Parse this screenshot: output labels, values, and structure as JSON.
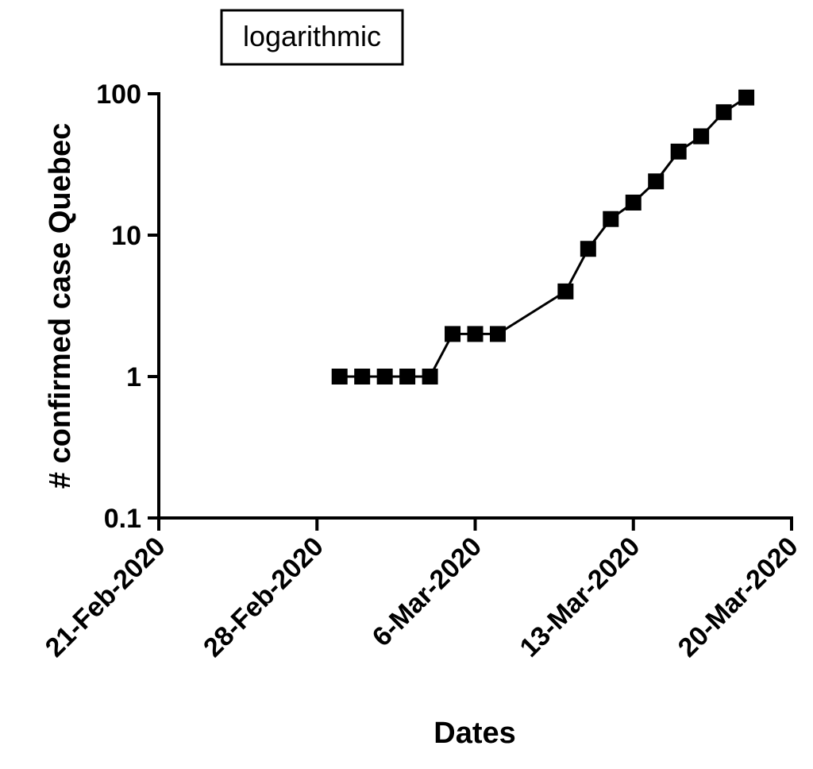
{
  "chart_data": {
    "type": "line",
    "title": "logarithmic",
    "xlabel": "Dates",
    "ylabel": "# confirmed case Quebec",
    "yscale": "log",
    "ylim": [
      0.1,
      100
    ],
    "xlim": [
      "2020-02-21",
      "2020-03-20"
    ],
    "y_ticks": [
      {
        "v": 0.1,
        "label": "0.1"
      },
      {
        "v": 1,
        "label": "1"
      },
      {
        "v": 10,
        "label": "10"
      },
      {
        "v": 100,
        "label": "100"
      }
    ],
    "x_ticks": [
      {
        "day": 0,
        "label": "21-Feb-2020"
      },
      {
        "day": 7,
        "label": "28-Feb-2020"
      },
      {
        "day": 14,
        "label": "6-Mar-2020"
      },
      {
        "day": 21,
        "label": "13-Mar-2020"
      },
      {
        "day": 28,
        "label": "20-Mar-2020"
      }
    ],
    "series": [
      {
        "name": "Quebec",
        "marker": "square",
        "color": "#000000",
        "x": [
          "2020-02-29",
          "2020-03-01",
          "2020-03-02",
          "2020-03-03",
          "2020-03-04",
          "2020-03-05",
          "2020-03-06",
          "2020-03-07",
          "2020-03-10",
          "2020-03-11",
          "2020-03-12",
          "2020-03-13",
          "2020-03-14",
          "2020-03-15",
          "2020-03-16",
          "2020-03-17",
          "2020-03-18"
        ],
        "day": [
          8,
          9,
          10,
          11,
          12,
          13,
          14,
          15,
          18,
          19,
          20,
          21,
          22,
          23,
          24,
          25,
          26
        ],
        "values": [
          1,
          1,
          1,
          1,
          1,
          2,
          2,
          2,
          4,
          8,
          13,
          17,
          24,
          39,
          50,
          74,
          94
        ]
      }
    ]
  }
}
